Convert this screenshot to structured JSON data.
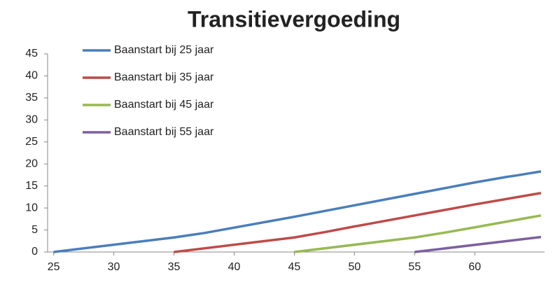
{
  "chart_data": {
    "type": "line",
    "title": "Transitievergoeding",
    "xlim": [
      24.5,
      65.8
    ],
    "xticks": [
      25,
      30,
      35,
      40,
      45,
      50,
      55,
      60
    ],
    "ylim": [
      0,
      45
    ],
    "yticks": [
      0,
      5,
      10,
      15,
      20,
      25,
      30,
      35,
      40,
      45
    ],
    "legend": "top-left",
    "series": [
      {
        "name": "Baanstart bij 25 jaar",
        "color": "#4a7ebb",
        "x": [
          25,
          35,
          37.5,
          45,
          50,
          55,
          60,
          62.5,
          63.5,
          65.5
        ],
        "values": [
          0,
          3.3,
          4.3,
          8.0,
          10.6,
          13.2,
          15.8,
          17,
          17.4,
          18.3
        ]
      },
      {
        "name": "Baanstart bij 35 jaar",
        "color": "#be4b48",
        "x": [
          35,
          45,
          47.5,
          50,
          55,
          60,
          65.5
        ],
        "values": [
          0,
          3.3,
          4.5,
          5.8,
          8.3,
          10.8,
          13.4
        ]
      },
      {
        "name": "Baanstart bij 45 jaar",
        "color": "#98b954",
        "x": [
          45,
          55,
          57.5,
          60,
          65.5
        ],
        "values": [
          0,
          3.3,
          4.4,
          5.6,
          8.3
        ]
      },
      {
        "name": "Baanstart bij 55 jaar",
        "color": "#7d60a0",
        "x": [
          55,
          65.5
        ],
        "values": [
          0,
          3.4
        ]
      }
    ]
  }
}
